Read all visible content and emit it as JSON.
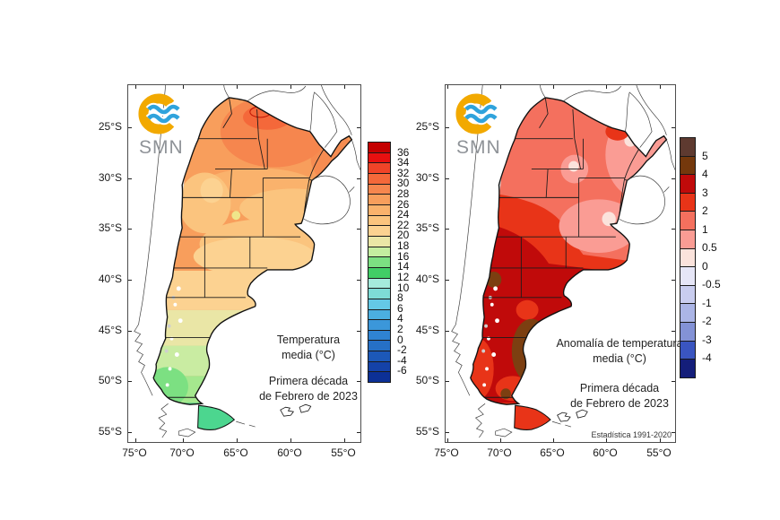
{
  "background": "#ffffff",
  "panels": [
    {
      "name": "temperatura-media",
      "logo_text": "SMN",
      "logo_ring_color": "#F2A900",
      "logo_wave_color": "#2FA3DC",
      "title1": "Temperatura",
      "title2": "media (°C)",
      "sub1": "Primera década",
      "sub2": "de Febrero de 2023",
      "footnote": "",
      "lat_labels": [
        "25°S",
        "30°S",
        "35°S",
        "40°S",
        "45°S",
        "50°S",
        "55°S"
      ],
      "lon_labels": [
        "75°O",
        "70°O",
        "65°O",
        "60°O",
        "55°O"
      ],
      "colorbar": {
        "labels": [
          "36",
          "34",
          "32",
          "30",
          "28",
          "26",
          "24",
          "22",
          "20",
          "18",
          "16",
          "14",
          "12",
          "10",
          "8",
          "6",
          "4",
          "2",
          "0",
          "-2",
          "-4",
          "-6"
        ],
        "colors": [
          "#C40000",
          "#E81010",
          "#F04428",
          "#F4683A",
          "#F6864E",
          "#F89E5C",
          "#FAB26C",
          "#FBC47E",
          "#FCD291",
          "#EAE6A6",
          "#C4EDA0",
          "#7CE082",
          "#41CE66",
          "#A5EBDC",
          "#7EDCD6",
          "#64C9E6",
          "#4BAFE0",
          "#3B97DA",
          "#2F83D2",
          "#2670C6",
          "#1C58B8",
          "#1442A8",
          "#0C3096"
        ]
      }
    },
    {
      "name": "anomalia-temperatura-media",
      "logo_text": "SMN",
      "logo_ring_color": "#F2A900",
      "logo_wave_color": "#2FA3DC",
      "title1": "Anomalía de temperatura",
      "title2": "media (°C)",
      "sub1": "Primera década",
      "sub2": "de Febrero de 2023",
      "footnote": "Estadística 1991-2020",
      "lat_labels": [
        "25°S",
        "30°S",
        "35°S",
        "40°S",
        "45°S",
        "50°S",
        "55°S"
      ],
      "lon_labels": [
        "75°O",
        "70°O",
        "65°O",
        "60°O",
        "55°O"
      ],
      "colorbar": {
        "labels": [
          "5",
          "4",
          "3",
          "2",
          "1",
          "0.5",
          "0",
          "-0.5",
          "-1",
          "-2",
          "-3",
          "-4"
        ],
        "colors": [
          "#5E3A30",
          "#74380C",
          "#C00A0A",
          "#E83418",
          "#F4705E",
          "#FA9C94",
          "#FBE3DC",
          "#E6E6F7",
          "#C9CDEF",
          "#ABB5E6",
          "#8392D6",
          "#3A55C0",
          "#141E7A"
        ]
      }
    }
  ]
}
